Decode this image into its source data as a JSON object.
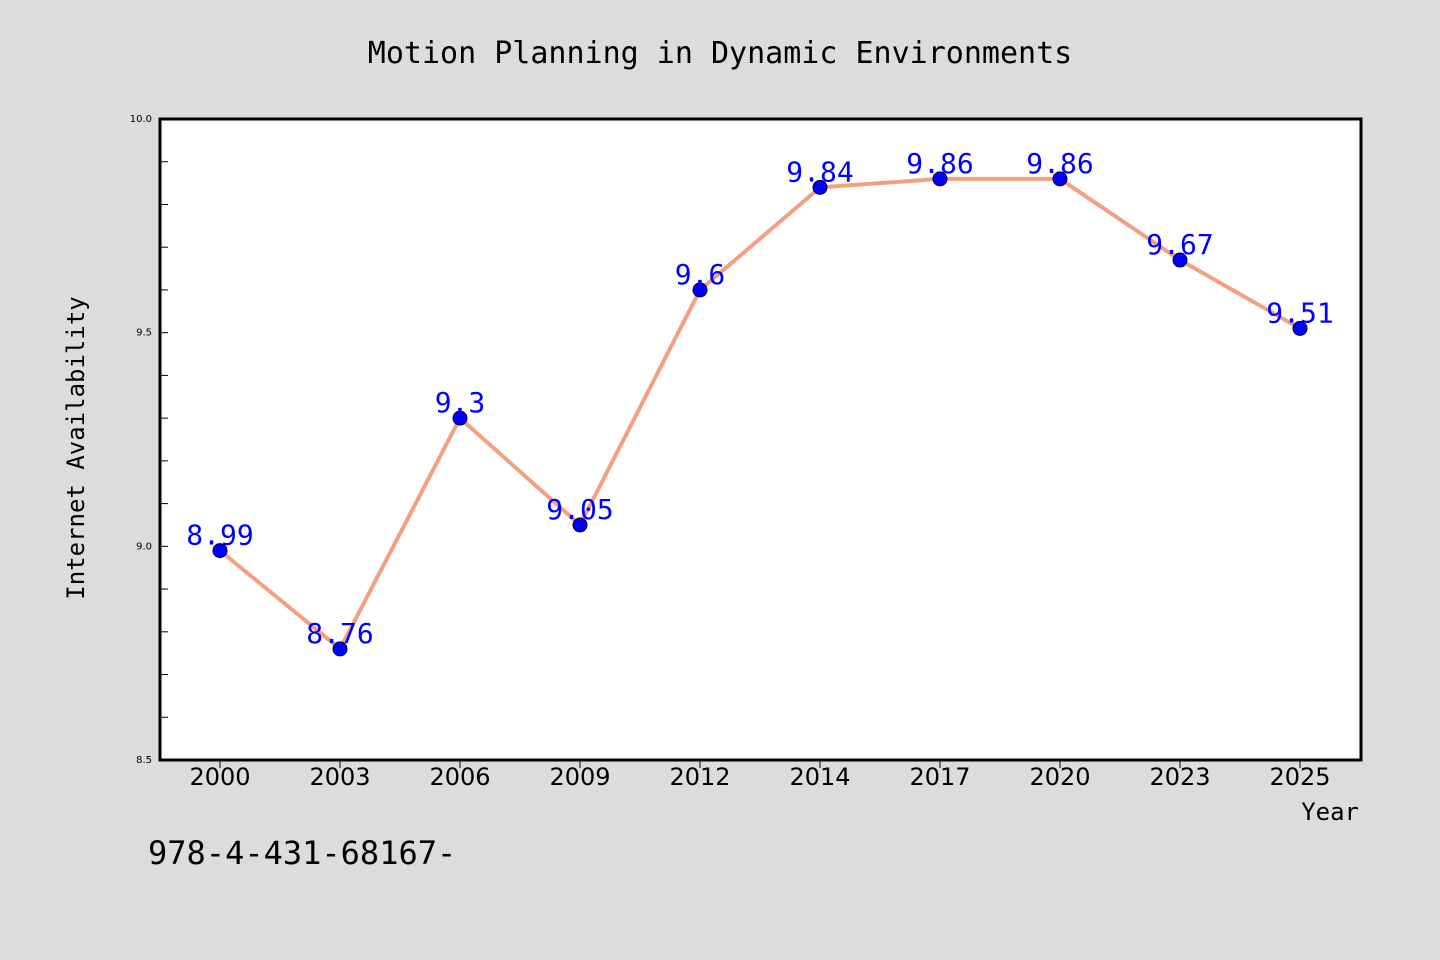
{
  "chart_data": {
    "type": "line",
    "title": "Motion Planning in Dynamic Environments",
    "xlabel": "Year",
    "ylabel": "Internet Availability",
    "categories": [
      "2000",
      "2003",
      "2006",
      "2009",
      "2012",
      "2014",
      "2017",
      "2020",
      "2023",
      "2025"
    ],
    "series": [
      {
        "values": [
          8.99,
          8.76,
          9.3,
          9.05,
          9.6,
          9.84,
          9.86,
          9.86,
          9.67,
          9.51
        ],
        "data_labels": [
          "8.99",
          "8.76",
          "9.3",
          "9.05",
          "9.6",
          "9.84",
          "9.86",
          "9.86",
          "9.67",
          "9.51"
        ]
      }
    ],
    "ylim": [
      8.5,
      10.0
    ],
    "yticks": [
      "8.5",
      "9.0",
      "9.5",
      "10.0"
    ],
    "grid": false,
    "legend": false,
    "colors": {
      "line": "#f4a080",
      "marker": "#0000ff",
      "data_label": "#0000ff",
      "background": "#dcdcdc",
      "plot_area": "#ffffff"
    }
  },
  "footer": {
    "text": "978-4-431-68167-"
  }
}
